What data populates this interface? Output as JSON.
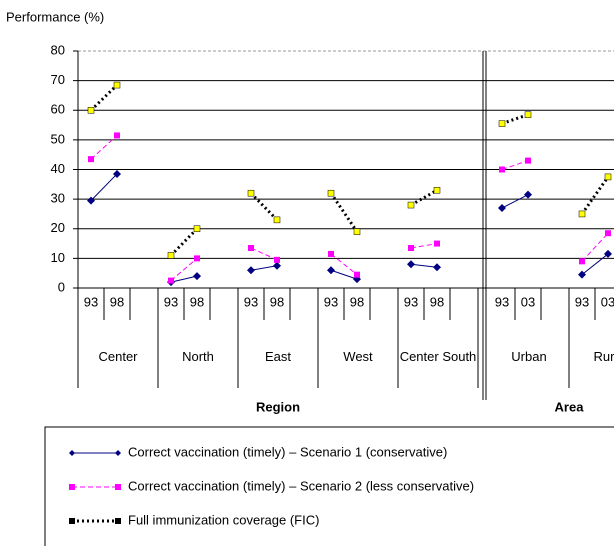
{
  "chart_data": {
    "type": "line",
    "y_label": "Performance (%)",
    "ylim": [
      0,
      80
    ],
    "yticks": [
      0,
      10,
      20,
      30,
      40,
      50,
      60,
      70,
      80
    ],
    "grid": true,
    "groups": [
      {
        "label": "Region",
        "categories": [
          {
            "name": "Center",
            "periods": [
              "93",
              "98"
            ]
          },
          {
            "name": "North",
            "periods": [
              "93",
              "98"
            ]
          },
          {
            "name": "East",
            "periods": [
              "93",
              "98"
            ]
          },
          {
            "name": "West",
            "periods": [
              "93",
              "98"
            ]
          },
          {
            "name": "Center South",
            "periods": [
              "93",
              "98"
            ]
          }
        ]
      },
      {
        "label": "Area",
        "categories": [
          {
            "name": "Urban",
            "periods": [
              "93",
              "03"
            ]
          },
          {
            "name": "Rural",
            "periods": [
              "93",
              "03"
            ]
          }
        ]
      }
    ],
    "series": [
      {
        "name": "Correct vaccination (timely)  – Scenario 1 (conservative)",
        "color": "#000080",
        "marker": "diamond",
        "marker_color": "#000080",
        "dash": "solid",
        "values": [
          29.5,
          38.5,
          2,
          4,
          6,
          7.5,
          6,
          3,
          8,
          7,
          27,
          31.5,
          4.5,
          11.5
        ]
      },
      {
        "name": "Correct vaccination (timely)  – Scenario 2 (less conservative)",
        "color": "#ff00ff",
        "marker": "square",
        "marker_color": "#ff00ff",
        "dash": "dashed",
        "values": [
          43.5,
          51.5,
          2.5,
          10,
          13.5,
          9.5,
          11.5,
          4.5,
          13.5,
          15,
          40,
          43,
          9,
          18.5
        ]
      },
      {
        "name": "Full immunization coverage (FIC)",
        "color": "#000000",
        "marker": "square",
        "marker_color": "#ffff00",
        "dash": "dotted",
        "values": [
          60,
          68.5,
          11,
          20,
          32,
          23,
          32,
          19,
          28,
          33,
          55.5,
          58.5,
          25,
          37.5
        ]
      }
    ]
  }
}
